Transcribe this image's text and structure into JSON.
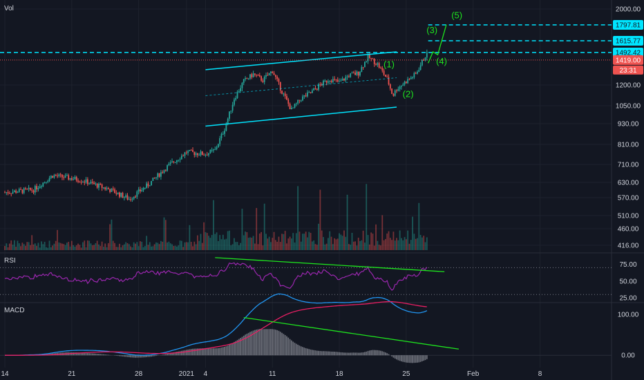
{
  "chart_data": [
    {
      "type": "candlestick",
      "pane": "price",
      "title": "Vol",
      "price_axis_ticks": [
        "2000.00",
        "1200.00",
        "1050.00",
        "930.00",
        "810.00",
        "710.00",
        "630.00",
        "570.00",
        "510.00",
        "460.00",
        "416.00"
      ],
      "price_axis_values": [
        2000,
        1200,
        1050,
        930,
        810,
        710,
        630,
        570,
        510,
        460,
        416
      ],
      "x_ticks": [
        "14",
        "21",
        "28",
        "2021",
        "4",
        "11",
        "18",
        "25",
        "Feb",
        "8"
      ],
      "channel": {
        "upper": [
          [
            6,
            1330
          ],
          [
            26,
            1500
          ]
        ],
        "lower": [
          [
            6,
            915
          ],
          [
            26,
            1040
          ]
        ],
        "mid": [
          [
            6,
            1120
          ],
          [
            26,
            1260
          ]
        ]
      },
      "levels": [
        {
          "label": "1797.81",
          "value": 1797.81,
          "color": "#00e5ff"
        },
        {
          "label": "1615.77",
          "value": 1615.77,
          "color": "#00e5ff"
        },
        {
          "label": "1492.42",
          "value": 1492.42,
          "color": "#00e5ff"
        }
      ],
      "last_price": {
        "label": "1419.00",
        "value": 1419.0,
        "countdown": "23:31",
        "color": "#ef5350"
      },
      "wave_labels": [
        {
          "text": "(1)",
          "x": 20.2,
          "y": 1350
        },
        {
          "text": "(2)",
          "x": 22.2,
          "y": 1110
        },
        {
          "text": "(3)",
          "x": 24.7,
          "y": 1700
        },
        {
          "text": "(4)",
          "x": 25.7,
          "y": 1380
        },
        {
          "text": "(5)",
          "x": 27.3,
          "y": 1880
        }
      ],
      "projection": [
        [
          24.7,
          1390
        ],
        [
          25.2,
          1500
        ],
        [
          25.7,
          1470
        ],
        [
          26.6,
          1800
        ]
      ]
    },
    {
      "type": "line",
      "pane": "rsi",
      "title": "RSI",
      "y_ticks": [
        "75.00",
        "50.00",
        "25.00"
      ],
      "y_values": [
        75,
        50,
        25
      ],
      "ylim": [
        20,
        90
      ],
      "bands": [
        70,
        30
      ],
      "trendline": [
        [
          4,
          85
        ],
        [
          33,
          64
        ]
      ]
    },
    {
      "type": "line",
      "pane": "macd",
      "title": "MACD",
      "y_ticks": [
        "100.00",
        "0.00"
      ],
      "y_values": [
        100,
        0
      ],
      "ylim": [
        -30,
        125
      ],
      "trendline": [
        [
          4,
          92
        ],
        [
          34,
          15
        ]
      ]
    }
  ],
  "colors": {
    "bg": "#131722",
    "grid": "#1e222d",
    "up": "#26a69a",
    "down": "#ef5350",
    "channel": "#00e5ff",
    "wave": "#1ee51e",
    "rsi": "#9c27b0",
    "trend": "#1ee51e",
    "macd": "#2196f3",
    "signal": "#e91e63",
    "hist": "#b2b5be"
  }
}
